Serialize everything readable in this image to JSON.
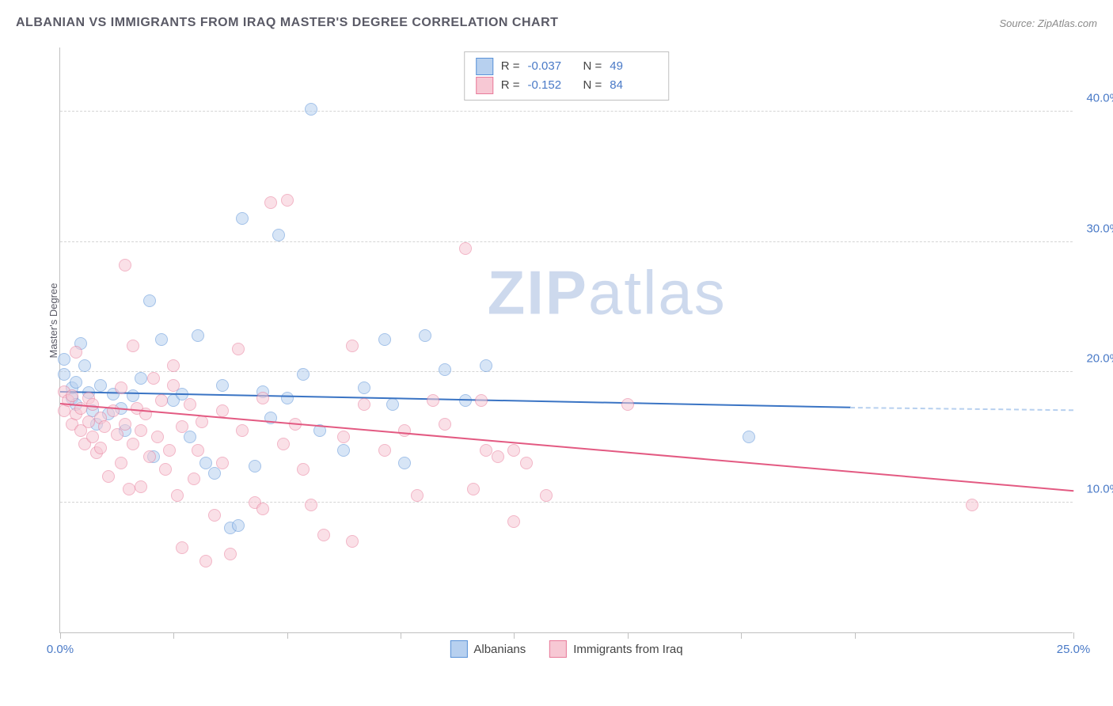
{
  "title": "ALBANIAN VS IMMIGRANTS FROM IRAQ MASTER'S DEGREE CORRELATION CHART",
  "source_prefix": "Source: ",
  "source_name": "ZipAtlas.com",
  "ylabel": "Master's Degree",
  "watermark_bold": "ZIP",
  "watermark_light": "atlas",
  "watermark_color": "#cdd9ed",
  "chart": {
    "type": "scatter",
    "background_color": "#ffffff",
    "grid_color": "#d5d5d5",
    "axis_color": "#c0c0c0",
    "xlim": [
      0,
      25
    ],
    "ylim": [
      0,
      45
    ],
    "yticks": [
      10,
      20,
      30,
      40
    ],
    "ytick_labels": [
      "10.0%",
      "20.0%",
      "30.0%",
      "40.0%"
    ],
    "xticks": [
      0,
      2.8,
      5.6,
      8.4,
      11.2,
      14,
      16.8,
      19.6,
      25
    ],
    "xtick_labels_shown": {
      "0": "0.0%",
      "25": "25.0%"
    },
    "point_radius": 8,
    "point_opacity": 0.55,
    "series": [
      {
        "name": "Albanians",
        "fill": "#b7d0ef",
        "stroke": "#5a92d8",
        "line_color": "#3a74c4",
        "regression": {
          "x1": 0,
          "y1": 18.4,
          "x2": 19.5,
          "y2": 17.2,
          "dash_to_x": 25,
          "dash_y": 17.0
        },
        "R_label": "R =",
        "R_value": "-0.037",
        "N_label": "N =",
        "N_value": "49",
        "points": [
          [
            0.1,
            19.8
          ],
          [
            0.1,
            21.0
          ],
          [
            0.3,
            18.0
          ],
          [
            0.3,
            18.8
          ],
          [
            0.4,
            17.5
          ],
          [
            0.4,
            19.2
          ],
          [
            0.5,
            22.2
          ],
          [
            0.6,
            20.5
          ],
          [
            0.7,
            18.4
          ],
          [
            0.8,
            17.0
          ],
          [
            0.9,
            16.0
          ],
          [
            1.0,
            19.0
          ],
          [
            1.2,
            16.8
          ],
          [
            1.3,
            18.3
          ],
          [
            1.5,
            17.2
          ],
          [
            1.6,
            15.5
          ],
          [
            1.8,
            18.2
          ],
          [
            2.0,
            19.5
          ],
          [
            2.2,
            25.5
          ],
          [
            2.3,
            13.5
          ],
          [
            2.5,
            22.5
          ],
          [
            2.8,
            17.8
          ],
          [
            3.0,
            18.3
          ],
          [
            3.2,
            15.0
          ],
          [
            3.4,
            22.8
          ],
          [
            3.6,
            13.0
          ],
          [
            3.8,
            12.2
          ],
          [
            4.0,
            19.0
          ],
          [
            4.2,
            8.0
          ],
          [
            4.4,
            8.2
          ],
          [
            4.5,
            31.8
          ],
          [
            4.8,
            12.8
          ],
          [
            5.0,
            18.5
          ],
          [
            5.2,
            16.5
          ],
          [
            5.4,
            30.5
          ],
          [
            5.6,
            18.0
          ],
          [
            6.0,
            19.8
          ],
          [
            6.2,
            40.2
          ],
          [
            6.4,
            15.5
          ],
          [
            7.0,
            14.0
          ],
          [
            7.5,
            18.8
          ],
          [
            8.0,
            22.5
          ],
          [
            8.2,
            17.5
          ],
          [
            8.5,
            13.0
          ],
          [
            9.0,
            22.8
          ],
          [
            9.5,
            20.2
          ],
          [
            10.0,
            17.8
          ],
          [
            10.5,
            20.5
          ],
          [
            17.0,
            15.0
          ]
        ]
      },
      {
        "name": "Immigrants from Iraq",
        "fill": "#f7c8d4",
        "stroke": "#e87b9a",
        "line_color": "#e35a82",
        "regression": {
          "x1": 0,
          "y1": 17.5,
          "x2": 25,
          "y2": 10.8
        },
        "R_label": "R =",
        "R_value": "-0.152",
        "N_label": "N =",
        "N_value": "84",
        "points": [
          [
            0.1,
            18.5
          ],
          [
            0.1,
            17.0
          ],
          [
            0.2,
            17.8
          ],
          [
            0.3,
            16.0
          ],
          [
            0.3,
            18.2
          ],
          [
            0.4,
            16.8
          ],
          [
            0.4,
            21.5
          ],
          [
            0.5,
            15.5
          ],
          [
            0.5,
            17.2
          ],
          [
            0.6,
            14.5
          ],
          [
            0.7,
            18.0
          ],
          [
            0.7,
            16.2
          ],
          [
            0.8,
            15.0
          ],
          [
            0.8,
            17.5
          ],
          [
            0.9,
            13.8
          ],
          [
            1.0,
            16.5
          ],
          [
            1.0,
            14.2
          ],
          [
            1.1,
            15.8
          ],
          [
            1.2,
            12.0
          ],
          [
            1.3,
            17.0
          ],
          [
            1.4,
            15.2
          ],
          [
            1.5,
            18.8
          ],
          [
            1.5,
            13.0
          ],
          [
            1.6,
            28.2
          ],
          [
            1.6,
            16.0
          ],
          [
            1.7,
            11.0
          ],
          [
            1.8,
            22.0
          ],
          [
            1.8,
            14.5
          ],
          [
            1.9,
            17.2
          ],
          [
            2.0,
            15.5
          ],
          [
            2.0,
            11.2
          ],
          [
            2.1,
            16.8
          ],
          [
            2.2,
            13.5
          ],
          [
            2.3,
            19.5
          ],
          [
            2.4,
            15.0
          ],
          [
            2.5,
            17.8
          ],
          [
            2.6,
            12.5
          ],
          [
            2.7,
            14.0
          ],
          [
            2.8,
            20.5
          ],
          [
            2.8,
            19.0
          ],
          [
            2.9,
            10.5
          ],
          [
            3.0,
            15.8
          ],
          [
            3.0,
            6.5
          ],
          [
            3.2,
            17.5
          ],
          [
            3.3,
            11.8
          ],
          [
            3.4,
            14.0
          ],
          [
            3.5,
            16.2
          ],
          [
            3.6,
            5.5
          ],
          [
            3.8,
            9.0
          ],
          [
            4.0,
            17.0
          ],
          [
            4.0,
            13.0
          ],
          [
            4.2,
            6.0
          ],
          [
            4.4,
            21.8
          ],
          [
            4.5,
            15.5
          ],
          [
            4.8,
            10.0
          ],
          [
            5.0,
            18.0
          ],
          [
            5.0,
            9.5
          ],
          [
            5.2,
            33.0
          ],
          [
            5.5,
            14.5
          ],
          [
            5.6,
            33.2
          ],
          [
            5.8,
            16.0
          ],
          [
            6.0,
            12.5
          ],
          [
            6.2,
            9.8
          ],
          [
            6.5,
            7.5
          ],
          [
            7.0,
            15.0
          ],
          [
            7.2,
            22.0
          ],
          [
            7.2,
            7.0
          ],
          [
            7.5,
            17.5
          ],
          [
            8.0,
            14.0
          ],
          [
            8.5,
            15.5
          ],
          [
            8.8,
            10.5
          ],
          [
            9.2,
            17.8
          ],
          [
            9.5,
            16.0
          ],
          [
            10.0,
            29.5
          ],
          [
            10.2,
            11.0
          ],
          [
            10.4,
            17.8
          ],
          [
            10.5,
            14.0
          ],
          [
            10.8,
            13.5
          ],
          [
            11.2,
            8.5
          ],
          [
            11.2,
            14.0
          ],
          [
            11.5,
            13.0
          ],
          [
            12.0,
            10.5
          ],
          [
            14.0,
            17.5
          ],
          [
            22.5,
            9.8
          ]
        ]
      }
    ]
  },
  "legend_bottom": [
    {
      "label": "Albanians",
      "fill": "#b7d0ef",
      "stroke": "#5a92d8"
    },
    {
      "label": "Immigrants from Iraq",
      "fill": "#f7c8d4",
      "stroke": "#e87b9a"
    }
  ]
}
